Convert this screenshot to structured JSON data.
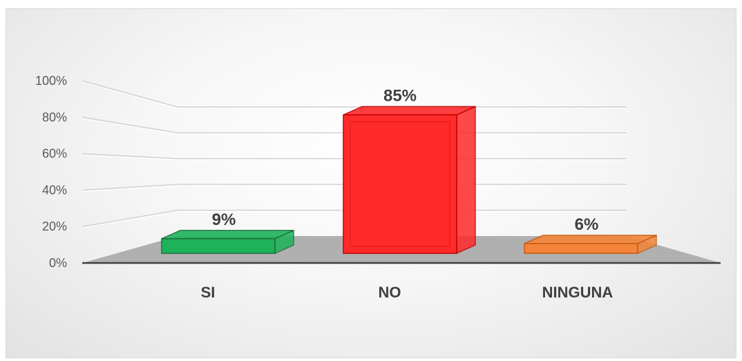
{
  "chart_data": {
    "type": "bar",
    "categories": [
      "SI",
      "NO",
      "NINGUNA"
    ],
    "values": [
      9,
      85,
      6
    ],
    "data_labels": [
      "9%",
      "85%",
      "6%"
    ],
    "y_ticks": [
      "0%",
      "20%",
      "40%",
      "60%",
      "80%",
      "100%"
    ],
    "ylim": [
      0,
      100
    ],
    "grid": true,
    "style": "3d",
    "colors": [
      "#1db35a",
      "#ff2a2a",
      "#f4843a"
    ],
    "edge_colors": [
      "#1e6b3a",
      "#c00000",
      "#c55a11"
    ]
  }
}
